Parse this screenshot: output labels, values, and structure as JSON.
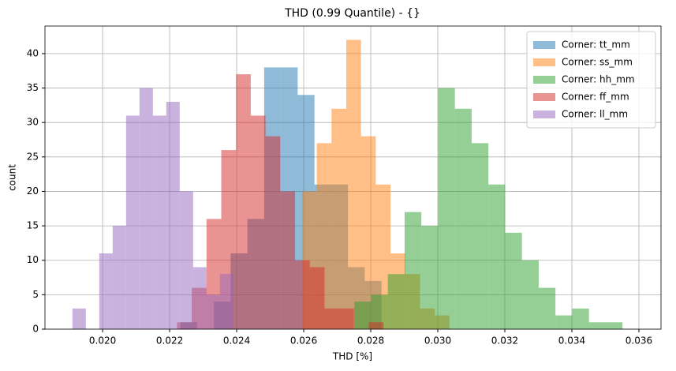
{
  "chart_data": {
    "type": "histogram",
    "title": "THD (0.99 Quantile) - {}",
    "xlabel": "THD [%]",
    "ylabel": "count",
    "xlim": [
      0.01828,
      0.03666
    ],
    "ylim": [
      0,
      44
    ],
    "xticks": [
      {
        "value": 0.02,
        "label": "0.020"
      },
      {
        "value": 0.022,
        "label": "0.022"
      },
      {
        "value": 0.024,
        "label": "0.024"
      },
      {
        "value": 0.026,
        "label": "0.026"
      },
      {
        "value": 0.028,
        "label": "0.028"
      },
      {
        "value": 0.03,
        "label": "0.030"
      },
      {
        "value": 0.032,
        "label": "0.032"
      },
      {
        "value": 0.034,
        "label": "0.034"
      },
      {
        "value": 0.036,
        "label": "0.036"
      }
    ],
    "yticks": [
      0,
      5,
      10,
      15,
      20,
      25,
      30,
      35,
      40
    ],
    "grid": true,
    "legend": "upper-right",
    "opacity": 0.5,
    "series": [
      {
        "name": "Corner: tt_mm",
        "color": "#1f77b4",
        "bins": [
          0.02232,
          0.02282,
          0.02332,
          0.02382,
          0.02432,
          0.02482,
          0.02532,
          0.02582,
          0.02632,
          0.02682,
          0.02732,
          0.02782,
          0.02832
        ],
        "values": [
          1,
          0,
          4,
          11,
          16,
          38,
          38,
          34,
          21,
          21,
          9,
          7
        ]
      },
      {
        "name": "Corner: ss_mm",
        "color": "#ff7f0e",
        "bins": [
          0.02595,
          0.02639,
          0.02683,
          0.02727,
          0.02771,
          0.02815,
          0.02859,
          0.02903,
          0.02947,
          0.02991,
          0.03035
        ],
        "values": [
          20,
          27,
          32,
          42,
          28,
          21,
          11,
          8,
          3,
          2
        ]
      },
      {
        "name": "Corner: hh_mm",
        "color": "#2ca02c",
        "bins": [
          0.02751,
          0.02801,
          0.02851,
          0.02901,
          0.02951,
          0.03001,
          0.03051,
          0.03101,
          0.03151,
          0.03201,
          0.03251,
          0.03301,
          0.03351,
          0.03401,
          0.03451,
          0.03501,
          0.03551
        ],
        "values": [
          4,
          5,
          8,
          17,
          15,
          35,
          32,
          27,
          21,
          14,
          10,
          6,
          2,
          3,
          1,
          1
        ]
      },
      {
        "name": "Corner: ff_mm",
        "color": "#d62728",
        "bins": [
          0.02222,
          0.02266,
          0.0231,
          0.02354,
          0.02398,
          0.02442,
          0.02486,
          0.0253,
          0.02574,
          0.02618,
          0.02662,
          0.02706,
          0.0275,
          0.02794,
          0.02838
        ],
        "values": [
          1,
          6,
          16,
          26,
          37,
          31,
          28,
          20,
          10,
          9,
          3,
          3,
          0,
          1
        ]
      },
      {
        "name": "Corner: ll_mm",
        "color": "#9467bd",
        "bins": [
          0.0191,
          0.0195,
          0.0199,
          0.0203,
          0.0207,
          0.0211,
          0.0215,
          0.0219,
          0.0223,
          0.0227,
          0.0231,
          0.0235,
          0.0239
        ],
        "values": [
          3,
          0,
          11,
          15,
          31,
          35,
          31,
          33,
          20,
          9,
          5,
          8
        ]
      }
    ]
  }
}
